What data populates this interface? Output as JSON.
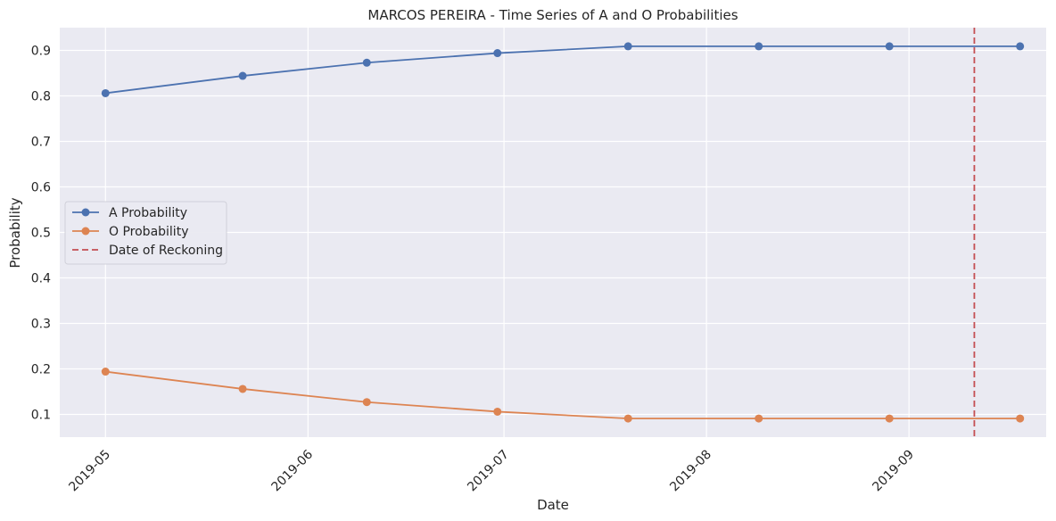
{
  "chart_data": {
    "type": "line",
    "title": "MARCOS PEREIRA - Time Series of A and O Probabilities",
    "xlabel": "Date",
    "ylabel": "Probability",
    "x": [
      "2019-05-01",
      "2019-05-22",
      "2019-06-10",
      "2019-06-30",
      "2019-07-20",
      "2019-08-09",
      "2019-08-29",
      "2019-09-18"
    ],
    "x_ticks": [
      "2019-05-01",
      "2019-06-01",
      "2019-07-01",
      "2019-08-01",
      "2019-09-01"
    ],
    "x_tick_labels": [
      "2019-05",
      "2019-06",
      "2019-07",
      "2019-08",
      "2019-09"
    ],
    "x_range": [
      "2019-04-24",
      "2019-09-22"
    ],
    "y_ticks": [
      0.1,
      0.2,
      0.3,
      0.4,
      0.5,
      0.6,
      0.7,
      0.8,
      0.9
    ],
    "y_tick_labels": [
      "0.1",
      "0.2",
      "0.3",
      "0.4",
      "0.5",
      "0.6",
      "0.7",
      "0.8",
      "0.9"
    ],
    "ylim": [
      0.05,
      0.95
    ],
    "grid": true,
    "legend_position": "center-left",
    "series": [
      {
        "name": "A Probability",
        "color": "#4c72b0",
        "values": [
          0.806,
          0.844,
          0.873,
          0.894,
          0.909,
          0.909,
          0.909,
          0.909
        ]
      },
      {
        "name": "O Probability",
        "color": "#dd8452",
        "values": [
          0.194,
          0.156,
          0.127,
          0.106,
          0.091,
          0.091,
          0.091,
          0.091
        ]
      }
    ],
    "vline": {
      "name": "Date of Reckoning",
      "x": "2019-09-11",
      "color": "#c44e52",
      "style": "dashed"
    },
    "background": "#eaeaf2",
    "grid_color": "#ffffff"
  }
}
